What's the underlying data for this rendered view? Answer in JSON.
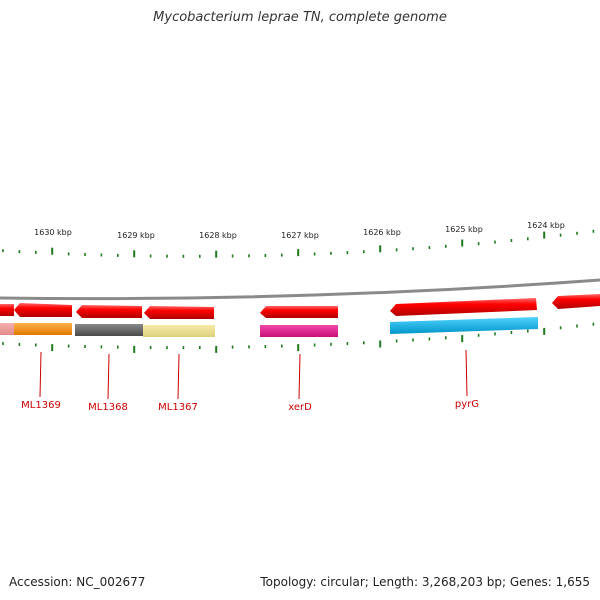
{
  "title": "Mycobacterium leprae TN, complete genome",
  "footer": {
    "accession": "Accession: NC_002677",
    "summary": "Topology: circular; Length: 3,268,203 bp; Genes: 1,655"
  },
  "scale_labels": [
    "1630 kbp",
    "1629 kbp",
    "1628 kbp",
    "1627 kbp",
    "1626 kbp",
    "1625 kbp",
    "1624 kbp"
  ],
  "gene_labels": [
    "ML1369",
    "ML1368",
    "ML1367",
    "xerD",
    "pyrG"
  ],
  "colors": {
    "backbone": "#8a8a8a",
    "strand_arrow": "#ff1a1a",
    "tick": "#1f7a1f",
    "label": "#cc0000",
    "genes": [
      "#ff8c00",
      "#5a5a5a",
      "#eddf8c",
      "#e0158a",
      "#00b4e6"
    ]
  }
}
